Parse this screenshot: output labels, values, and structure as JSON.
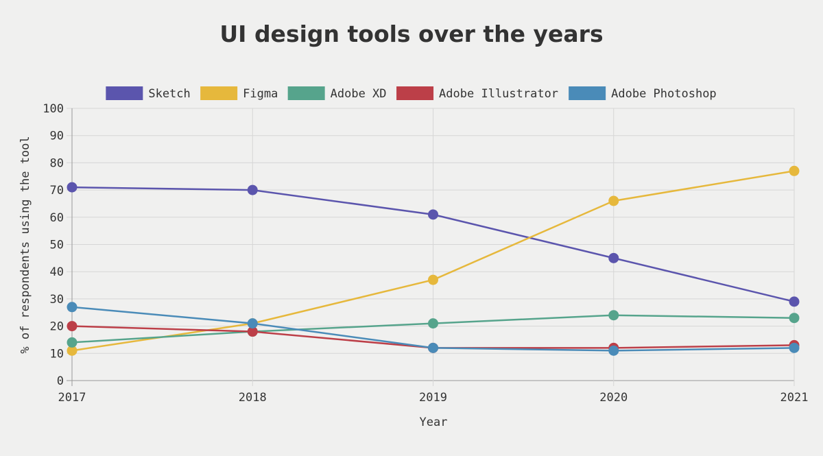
{
  "chart_data": {
    "type": "line",
    "title": "UI design tools over the years",
    "xlabel": "Year",
    "ylabel": "% of respondents using the tool",
    "categories": [
      "2017",
      "2018",
      "2019",
      "2020",
      "2021"
    ],
    "ylim": [
      0,
      100
    ],
    "yticks": [
      0,
      10,
      20,
      30,
      40,
      50,
      60,
      70,
      80,
      90,
      100
    ],
    "grid": true,
    "legend_position": "top",
    "series": [
      {
        "name": "Sketch",
        "color": "#5b55ad",
        "values": [
          71,
          70,
          61,
          45,
          29
        ]
      },
      {
        "name": "Figma",
        "color": "#e6b83c",
        "values": [
          11,
          21,
          37,
          66,
          77
        ]
      },
      {
        "name": "Adobe XD",
        "color": "#56a48c",
        "values": [
          14,
          18,
          21,
          24,
          23
        ]
      },
      {
        "name": "Adobe Illustrator",
        "color": "#bc3f48",
        "values": [
          20,
          18,
          12,
          12,
          13
        ]
      },
      {
        "name": "Adobe Photoshop",
        "color": "#4a8bb8",
        "values": [
          27,
          21,
          12,
          11,
          12
        ]
      }
    ]
  }
}
